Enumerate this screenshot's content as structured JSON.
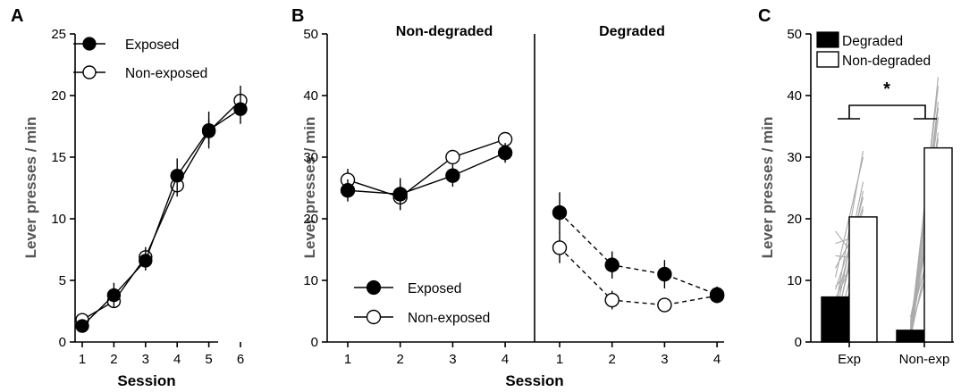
{
  "chart_data": [
    {
      "panel": "A",
      "type": "line",
      "ylabel": "Lever presses / min",
      "xlabel": "Session",
      "ylim": [
        0,
        25
      ],
      "yticks": [
        0,
        5,
        10,
        15,
        20,
        25
      ],
      "categories": [
        1,
        2,
        3,
        4,
        5,
        6
      ],
      "series": [
        {
          "name": "Exposed",
          "marker": "filled",
          "values": [
            1.3,
            3.8,
            6.6,
            13.5,
            17.2,
            18.9
          ],
          "errors": [
            0.4,
            1.0,
            0.8,
            1.4,
            1.5,
            1.2
          ]
        },
        {
          "name": "Non-exposed",
          "marker": "open",
          "values": [
            1.8,
            3.3,
            6.9,
            12.7,
            17.1,
            19.6
          ],
          "errors": [
            0.3,
            0.5,
            0.8,
            0.9,
            1.0,
            1.2
          ]
        }
      ],
      "legend": {
        "position": "top-left",
        "entries": [
          "Exposed",
          "Non-exposed"
        ]
      }
    },
    {
      "panel": "B",
      "type": "line",
      "ylabel": "Lever presses / min",
      "xlabel": "Session",
      "ylim": [
        0,
        50
      ],
      "yticks": [
        0,
        10,
        20,
        30,
        40,
        50
      ],
      "subpanels": [
        {
          "title": "Non-degraded",
          "line_style": "solid",
          "categories": [
            1,
            2,
            3,
            4
          ],
          "series": [
            {
              "name": "Exposed",
              "marker": "filled",
              "values": [
                24.6,
                24.0,
                27.0,
                30.7
              ],
              "errors": [
                1.8,
                2.6,
                1.8,
                1.6
              ]
            },
            {
              "name": "Non-exposed",
              "marker": "open",
              "values": [
                26.3,
                23.5,
                30.0,
                32.9
              ],
              "errors": [
                1.8,
                2.0,
                0.6,
                0.9
              ]
            }
          ]
        },
        {
          "title": "Degraded",
          "line_style": "dashed",
          "categories": [
            1,
            2,
            3,
            4
          ],
          "series": [
            {
              "name": "Exposed",
              "marker": "filled",
              "values": [
                21.0,
                12.5,
                11.0,
                7.7
              ],
              "errors": [
                3.3,
                2.2,
                2.3,
                1.3
              ]
            },
            {
              "name": "Non-exposed",
              "marker": "open",
              "values": [
                15.3,
                6.8,
                6.0,
                7.5
              ],
              "errors": [
                2.5,
                1.5,
                0.6,
                0.8
              ]
            }
          ]
        }
      ],
      "legend": {
        "position": "bottom-left",
        "entries": [
          "Exposed",
          "Non-exposed"
        ]
      }
    },
    {
      "panel": "C",
      "type": "bar",
      "ylabel": "Lever presses / min",
      "ylim": [
        0,
        50
      ],
      "yticks": [
        0,
        10,
        20,
        30,
        40,
        50
      ],
      "categories": [
        "Exp",
        "Non-exp"
      ],
      "series": [
        {
          "name": "Degraded",
          "fill": "#000000",
          "values": [
            7.3,
            1.9
          ]
        },
        {
          "name": "Non-degraded",
          "fill": "#ffffff",
          "values": [
            20.3,
            31.5
          ]
        }
      ],
      "individual_lines": [
        [
          [
            1.5,
            18.0
          ],
          [
            3.0,
            21.5
          ],
          [
            6.0,
            23.5
          ],
          [
            8.5,
            22.0
          ],
          [
            4.0,
            26.0
          ],
          [
            10.5,
            30.0
          ],
          [
            2.0,
            24.5
          ],
          [
            7.0,
            16.5
          ],
          [
            14.0,
            13.5
          ],
          [
            16.0,
            17.5
          ],
          [
            5.5,
            31.0
          ],
          [
            9.0,
            14.0
          ],
          [
            12.0,
            20.0
          ],
          [
            18.0,
            12.0
          ],
          [
            1.0,
            15.0
          ]
        ],
        [
          [
            0.5,
            43.0
          ],
          [
            1.0,
            39.0
          ],
          [
            2.0,
            41.5
          ],
          [
            1.5,
            36.5
          ],
          [
            3.0,
            34.0
          ],
          [
            0.8,
            31.0
          ],
          [
            2.5,
            29.0
          ],
          [
            1.2,
            27.0
          ],
          [
            4.0,
            25.0
          ],
          [
            0.6,
            22.0
          ],
          [
            3.5,
            20.0
          ],
          [
            1.8,
            18.0
          ],
          [
            2.2,
            17.0
          ],
          [
            0.9,
            38.0
          ],
          [
            1.4,
            33.0
          ]
        ]
      ],
      "significance": {
        "label": "*",
        "between": [
          "Exp",
          "Non-exp"
        ]
      },
      "legend": {
        "position": "top-left",
        "entries": [
          "Degraded",
          "Non-degraded"
        ]
      }
    }
  ],
  "colors": {
    "ink": "#000000",
    "axis_label_gray": "#555555",
    "individual_lines": "#aaaaaa"
  }
}
